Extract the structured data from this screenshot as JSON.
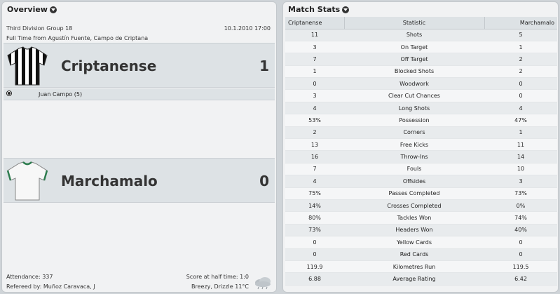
{
  "overview": {
    "title": "Overview",
    "competition": "Third Division Group 18",
    "datetime": "10.1.2010 17:00",
    "venue": "Full Time from Agustín Fuente, Campo de Criptana",
    "home": {
      "name": "Criptanense",
      "score": "1",
      "kit": "black-white-striped-shirt-icon"
    },
    "away": {
      "name": "Marchamalo",
      "score": "0",
      "kit": "white-green-trim-shirt-icon"
    },
    "scorers": "Juan Campo (5)",
    "attendance": "Attendance: 337",
    "referee": "Refereed by: Muñoz Caravaca, J",
    "half_time": "Score at half time: 1:0",
    "weather": "Breezy, Drizzle 11°C"
  },
  "match_stats": {
    "title": "Match Stats",
    "headers": {
      "home": "Criptanense",
      "stat": "Statistic",
      "away": "Marchamalo"
    },
    "rows": [
      {
        "home": "11",
        "stat": "Shots",
        "away": "5"
      },
      {
        "home": "3",
        "stat": "On Target",
        "away": "1"
      },
      {
        "home": "7",
        "stat": "Off Target",
        "away": "2"
      },
      {
        "home": "1",
        "stat": "Blocked Shots",
        "away": "2"
      },
      {
        "home": "0",
        "stat": "Woodwork",
        "away": "0"
      },
      {
        "home": "3",
        "stat": "Clear Cut Chances",
        "away": "0"
      },
      {
        "home": "4",
        "stat": "Long Shots",
        "away": "4"
      },
      {
        "home": "53%",
        "stat": "Possession",
        "away": "47%"
      },
      {
        "home": "2",
        "stat": "Corners",
        "away": "1"
      },
      {
        "home": "13",
        "stat": "Free Kicks",
        "away": "11"
      },
      {
        "home": "16",
        "stat": "Throw-Ins",
        "away": "14"
      },
      {
        "home": "7",
        "stat": "Fouls",
        "away": "10"
      },
      {
        "home": "4",
        "stat": "Offsides",
        "away": "3"
      },
      {
        "home": "75%",
        "stat": "Passes Completed",
        "away": "73%"
      },
      {
        "home": "14%",
        "stat": "Crosses Completed",
        "away": "0%"
      },
      {
        "home": "80%",
        "stat": "Tackles Won",
        "away": "74%"
      },
      {
        "home": "73%",
        "stat": "Headers Won",
        "away": "40%"
      },
      {
        "home": "0",
        "stat": "Yellow Cards",
        "away": "0"
      },
      {
        "home": "0",
        "stat": "Red Cards",
        "away": "0"
      },
      {
        "home": "119.9",
        "stat": "Kilometres Run",
        "away": "119.5"
      },
      {
        "home": "6.88",
        "stat": "Average Rating",
        "away": "6.42"
      }
    ]
  }
}
